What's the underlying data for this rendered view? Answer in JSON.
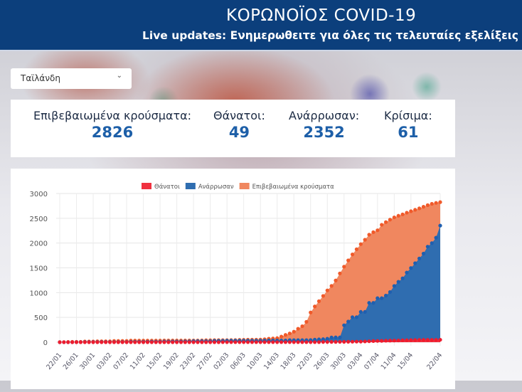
{
  "header": {
    "title": "ΚΟΡΩΝΟΪΟΣ COVID-19",
    "subtitle": "Live updates: Ενημερωθειτε για όλες τις τελευταίες εξελίξεις"
  },
  "country_select": {
    "value": "Ταϊλάνδη"
  },
  "stats": [
    {
      "label": "Επιβεβαιωμένα κρούσματα:",
      "value": "2826"
    },
    {
      "label": "Θάνατοι:",
      "value": "49"
    },
    {
      "label": "Ανάρρωσαν:",
      "value": "2352"
    },
    {
      "label": "Κρίσιμα:",
      "value": "61"
    }
  ],
  "chart_data": {
    "type": "area",
    "ylim": [
      0,
      3000
    ],
    "yticks": [
      "0",
      "500",
      "1000",
      "1500",
      "2000",
      "2500",
      "3000"
    ],
    "legend_position": "top",
    "grid": true,
    "xtick_labels": [
      "22/01",
      "26/01",
      "30/01",
      "03/02",
      "07/02",
      "11/02",
      "15/02",
      "19/02",
      "23/02",
      "27/02",
      "02/03",
      "06/03",
      "10/03",
      "14/03",
      "18/03",
      "22/03",
      "26/03",
      "30/03",
      "03/04",
      "07/04",
      "11/04",
      "15/04",
      "22/04"
    ],
    "series": [
      {
        "name": "Θάνατοι",
        "color": "#f0313f",
        "values": [
          0,
          0,
          0,
          0,
          0,
          0,
          0,
          0,
          0,
          0,
          0,
          0,
          0,
          0,
          0,
          0,
          0,
          0,
          0,
          0,
          0,
          0,
          0,
          0,
          0,
          0,
          0,
          0,
          0,
          0,
          0,
          0,
          0,
          0,
          0,
          0,
          0,
          0,
          0,
          1,
          1,
          1,
          1,
          1,
          1,
          1,
          1,
          1,
          1,
          1,
          1,
          1,
          1,
          1,
          1,
          1,
          1,
          1,
          1,
          1,
          1,
          1,
          1,
          4,
          4,
          5,
          5,
          6,
          7,
          9,
          10,
          12,
          12,
          15,
          19,
          23,
          26,
          27,
          30,
          32,
          33,
          35,
          38,
          40,
          41,
          43,
          46,
          47,
          47,
          47,
          47,
          49
        ]
      },
      {
        "name": "Ανάρρωσαν",
        "color": "#2f6db0",
        "values": [
          0,
          0,
          0,
          0,
          2,
          2,
          5,
          5,
          5,
          5,
          5,
          5,
          5,
          5,
          5,
          5,
          5,
          10,
          10,
          10,
          10,
          10,
          12,
          12,
          12,
          14,
          15,
          15,
          15,
          15,
          17,
          17,
          21,
          21,
          22,
          22,
          22,
          28,
          28,
          28,
          31,
          31,
          31,
          31,
          31,
          31,
          31,
          31,
          31,
          33,
          34,
          34,
          35,
          35,
          35,
          41,
          42,
          42,
          42,
          42,
          44,
          52,
          57,
          61,
          70,
          95,
          97,
          97,
          342,
          416,
          505,
          505,
          612,
          612,
          793,
          793,
          888,
          888,
          940,
          1013,
          1135,
          1218,
          1288,
          1405,
          1497,
          1593,
          1689,
          1787,
          1928,
          1999,
          2108,
          2352
        ]
      },
      {
        "name": "Επιβεβαιωμένα κρούσματα",
        "color": "#f0875f",
        "values": [
          2,
          3,
          5,
          7,
          8,
          8,
          14,
          14,
          14,
          19,
          19,
          19,
          19,
          25,
          25,
          25,
          25,
          32,
          32,
          32,
          33,
          33,
          33,
          33,
          33,
          34,
          35,
          35,
          35,
          35,
          35,
          35,
          35,
          35,
          37,
          40,
          40,
          41,
          42,
          42,
          42,
          43,
          43,
          47,
          48,
          50,
          50,
          50,
          53,
          59,
          70,
          75,
          82,
          114,
          147,
          177,
          212,
          272,
          322,
          411,
          599,
          721,
          827,
          934,
          1045,
          1136,
          1245,
          1388,
          1524,
          1651,
          1771,
          1875,
          1978,
          2067,
          2169,
          2220,
          2258,
          2369,
          2423,
          2473,
          2518,
          2551,
          2579,
          2613,
          2643,
          2672,
          2700,
          2733,
          2765,
          2792,
          2811,
          2826
        ]
      }
    ]
  }
}
